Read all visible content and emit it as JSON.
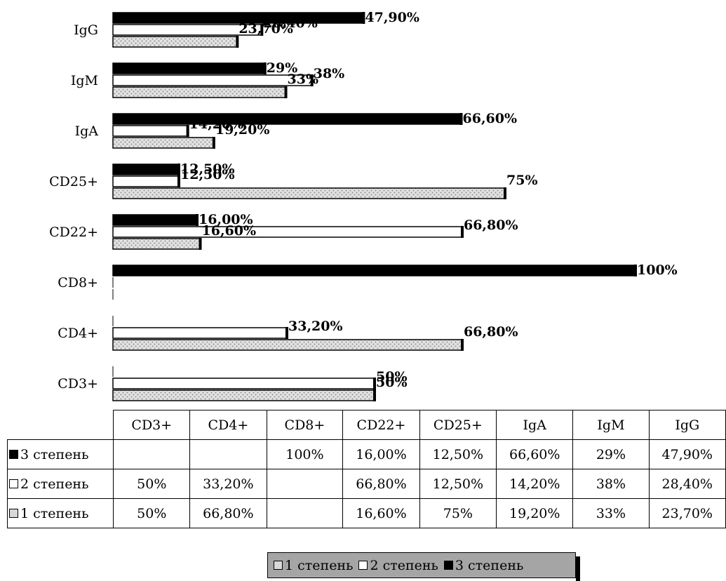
{
  "chart_data": {
    "type": "bar",
    "orientation": "horizontal",
    "categories": [
      "IgG",
      "IgM",
      "IgA",
      "CD25+",
      "CD22+",
      "CD8+",
      "CD4+",
      "CD3+"
    ],
    "table_columns": [
      "CD3+",
      "CD4+",
      "CD8+",
      "CD22+",
      "CD25+",
      "IgA",
      "IgM",
      "IgG"
    ],
    "xlim": [
      0,
      100
    ],
    "series": [
      {
        "name": "3 степень",
        "color": "#000000",
        "values": [
          47.9,
          29,
          66.6,
          12.5,
          16,
          100,
          null,
          null
        ],
        "labels": [
          "47,90%",
          "29%",
          "66,60%",
          "12,50%",
          "16,00%",
          "100%",
          "",
          ""
        ]
      },
      {
        "name": "2 степень",
        "color": "#ffffff",
        "values": [
          28.4,
          38,
          14.2,
          12.5,
          66.8,
          null,
          33.2,
          50
        ],
        "labels": [
          "28,40%",
          "38%",
          "14,20%",
          "12,50%",
          "66,80%",
          "",
          "33,20%",
          "50%"
        ]
      },
      {
        "name": "1 степень",
        "color": "#d8d8d8",
        "values": [
          23.7,
          33,
          19.2,
          75,
          16.6,
          null,
          66.8,
          50
        ],
        "labels": [
          "23,70%",
          "33%",
          "19,20%",
          "75%",
          "16,60%",
          "",
          "66,80%",
          "50%"
        ]
      }
    ],
    "table_rows": [
      {
        "name": "3 степень",
        "key": "dark",
        "cells": [
          "",
          "",
          "100%",
          "16,00%",
          "12,50%",
          "66,60%",
          "29%",
          "47,90%"
        ]
      },
      {
        "name": "2 степень",
        "key": "white",
        "cells": [
          "50%",
          "33,20%",
          "",
          "66,80%",
          "12,50%",
          "14,20%",
          "38%",
          "28,40%"
        ]
      },
      {
        "name": "1 степень",
        "key": "hatch",
        "cells": [
          "50%",
          "66,80%",
          "",
          "16,60%",
          "75%",
          "19,20%",
          "33%",
          "23,70%"
        ]
      }
    ],
    "legend": {
      "position": "bottom",
      "items": [
        {
          "name": "1 степень",
          "key": "hatch"
        },
        {
          "name": "2 степень",
          "key": "white"
        },
        {
          "name": "3 степень",
          "key": "dark"
        }
      ]
    },
    "grid": false
  }
}
